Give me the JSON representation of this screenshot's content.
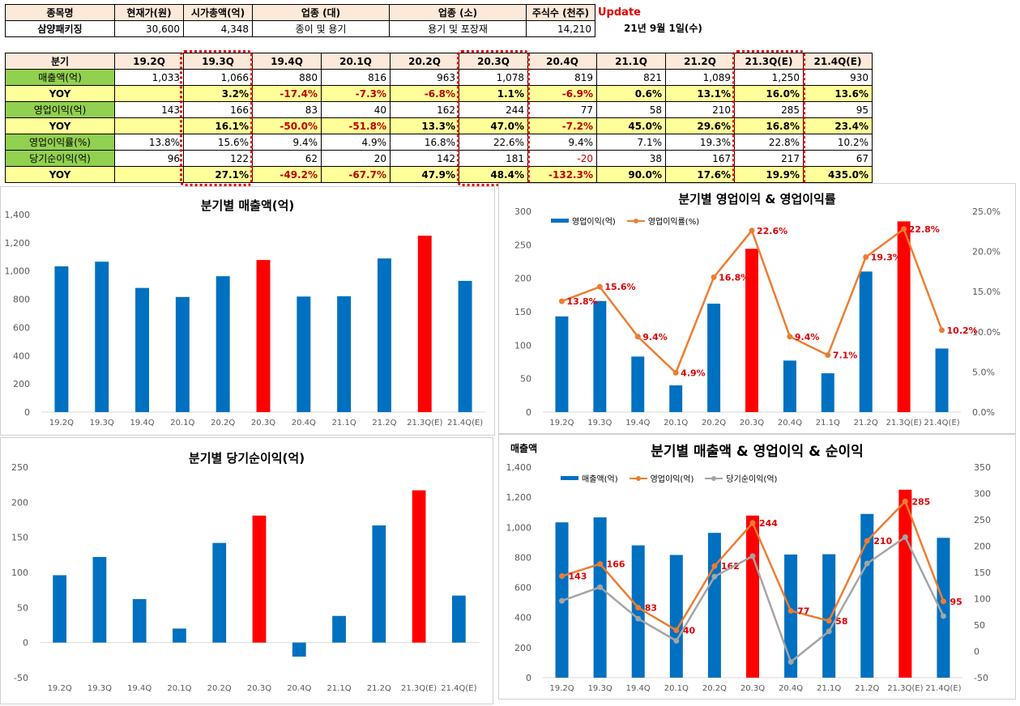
{
  "info_table": {
    "headers": [
      "종목명",
      "현재가(원)",
      "시가총액(억)",
      "업종 (대)",
      "업종 (소)",
      "주식수 (천주)"
    ],
    "values": [
      "삼양패키징",
      "30,600",
      "4,348",
      "종이 및 용기",
      "용기 및 포장재",
      "14,210"
    ],
    "update_label": "Update",
    "date": "21년 9월 1일(수)"
  },
  "quarter_table": {
    "corner": "분기",
    "quarters": [
      "19.2Q",
      "19.3Q",
      "19.4Q",
      "20.1Q",
      "20.2Q",
      "20.3Q",
      "20.4Q",
      "21.1Q",
      "21.2Q",
      "21.3Q(E)",
      "21.4Q(E)"
    ],
    "rows": [
      {
        "label": "매출액(억)",
        "type": "val",
        "cells": [
          "1,033",
          "1,066",
          "880",
          "816",
          "963",
          "1,078",
          "819",
          "821",
          "1,089",
          "1,250",
          "930"
        ]
      },
      {
        "label": "YOY",
        "type": "yoy",
        "cells": [
          "",
          "3.2%",
          "-17.4%",
          "-7.3%",
          "-6.8%",
          "1.1%",
          "-6.9%",
          "0.6%",
          "13.1%",
          "16.0%",
          "13.6%"
        ]
      },
      {
        "label": "영업이익(억)",
        "type": "val",
        "cells": [
          "143",
          "166",
          "83",
          "40",
          "162",
          "244",
          "77",
          "58",
          "210",
          "285",
          "95"
        ]
      },
      {
        "label": "YOY",
        "type": "yoy",
        "cells": [
          "",
          "16.1%",
          "-50.0%",
          "-51.8%",
          "13.3%",
          "47.0%",
          "-7.2%",
          "45.0%",
          "29.6%",
          "16.8%",
          "23.4%"
        ]
      },
      {
        "label": "영업이익률(%)",
        "type": "val",
        "cells": [
          "13.8%",
          "15.6%",
          "9.4%",
          "4.9%",
          "16.8%",
          "22.6%",
          "9.4%",
          "7.1%",
          "19.3%",
          "22.8%",
          "10.2%"
        ]
      },
      {
        "label": "당기순이익(억)",
        "type": "val",
        "cells": [
          "96",
          "122",
          "62",
          "20",
          "142",
          "181",
          "-20",
          "38",
          "167",
          "217",
          "67"
        ]
      },
      {
        "label": "YOY",
        "type": "yoy",
        "cells": [
          "",
          "27.1%",
          "-49.2%",
          "-67.7%",
          "47.9%",
          "48.4%",
          "-132.3%",
          "90.0%",
          "17.6%",
          "19.9%",
          "435.0%"
        ]
      }
    ]
  },
  "colors": {
    "blue": "#0070c0",
    "red": "#ff0000",
    "orange": "#ed7d31",
    "gray": "#a5a5a5",
    "label_red": "#e00000",
    "highlight": "#e00000"
  },
  "chart_data": [
    {
      "id": "revenue",
      "type": "bar",
      "title": "분기별 매출액(억)",
      "categories": [
        "19.2Q",
        "19.3Q",
        "19.4Q",
        "20.1Q",
        "20.2Q",
        "20.3Q",
        "20.4Q",
        "21.1Q",
        "21.2Q",
        "21.3Q(E)",
        "21.4Q(E)"
      ],
      "values": [
        1033,
        1066,
        880,
        816,
        963,
        1078,
        819,
        821,
        1089,
        1250,
        930
      ],
      "highlight_indices": [
        5,
        9
      ],
      "ylim": [
        0,
        1400
      ],
      "yticks": [
        0,
        200,
        400,
        600,
        800,
        1000,
        1200,
        1400
      ],
      "ytick_labels": [
        "0",
        "200",
        "400",
        "600",
        "800",
        "1,000",
        "1,200",
        "1,400"
      ]
    },
    {
      "id": "op",
      "type": "bar+line",
      "title": "분기별 영업이익 & 영업이익률",
      "categories": [
        "19.2Q",
        "19.3Q",
        "19.4Q",
        "20.1Q",
        "20.2Q",
        "20.3Q",
        "20.4Q",
        "21.1Q",
        "21.2Q",
        "21.3Q(E)",
        "21.4Q(E)"
      ],
      "series": [
        {
          "name": "영업이익(억)",
          "kind": "bar",
          "axis": "left",
          "values": [
            143,
            166,
            83,
            40,
            162,
            244,
            77,
            58,
            210,
            285,
            95
          ]
        },
        {
          "name": "영업이익률(%)",
          "kind": "line",
          "axis": "right",
          "values": [
            13.8,
            15.6,
            9.4,
            4.9,
            16.8,
            22.6,
            9.4,
            7.1,
            19.3,
            22.8,
            10.2
          ],
          "labels": [
            "13.8%",
            "15.6%",
            "9.4%",
            "4.9%",
            "16.8%",
            "22.6%",
            "9.4%",
            "7.1%",
            "19.3%",
            "22.8%",
            "10.2%"
          ]
        }
      ],
      "highlight_indices": [
        5,
        9
      ],
      "ylim": [
        0,
        300
      ],
      "yticks": [
        0,
        50,
        100,
        150,
        200,
        250,
        300
      ],
      "ytick_labels": [
        "0",
        "50",
        "100",
        "150",
        "200",
        "250",
        "300"
      ],
      "y2lim": [
        0,
        25
      ],
      "y2ticks": [
        0,
        5,
        10,
        15,
        20,
        25
      ],
      "y2tick_labels": [
        "0.0%",
        "5.0%",
        "10.0%",
        "15.0%",
        "20.0%",
        "25.0%"
      ]
    },
    {
      "id": "net",
      "type": "bar",
      "title": "분기별 당기순이익(억)",
      "categories": [
        "19.2Q",
        "19.3Q",
        "19.4Q",
        "20.1Q",
        "20.2Q",
        "20.3Q",
        "20.4Q",
        "21.1Q",
        "21.2Q",
        "21.3Q(E)",
        "21.4Q(E)"
      ],
      "values": [
        96,
        122,
        62,
        20,
        142,
        181,
        -20,
        38,
        167,
        217,
        67
      ],
      "highlight_indices": [
        5,
        9
      ],
      "ylim": [
        -50,
        250
      ],
      "yticks": [
        -50,
        0,
        50,
        100,
        150,
        200,
        250
      ],
      "ytick_labels": [
        "-50",
        "0",
        "50",
        "100",
        "150",
        "200",
        "250"
      ]
    },
    {
      "id": "combo",
      "type": "bar+line",
      "title": "분기별 매출액 & 영업이익 & 순이익",
      "axis_title": "매출액",
      "categories": [
        "19.2Q",
        "19.3Q",
        "19.4Q",
        "20.1Q",
        "20.2Q",
        "20.3Q",
        "20.4Q",
        "21.1Q",
        "21.2Q",
        "21.3Q(E)",
        "21.4Q(E)"
      ],
      "series": [
        {
          "name": "매출액(억)",
          "kind": "bar",
          "axis": "left",
          "values": [
            1033,
            1066,
            880,
            816,
            963,
            1078,
            819,
            821,
            1089,
            1250,
            930
          ]
        },
        {
          "name": "영업이익(억)",
          "kind": "line",
          "axis": "right",
          "values": [
            143,
            166,
            83,
            40,
            162,
            244,
            77,
            58,
            210,
            285,
            95
          ],
          "labels": [
            "143",
            "166",
            "83",
            "40",
            "162",
            "244",
            "77",
            "58",
            "210",
            "285",
            "95"
          ]
        },
        {
          "name": "당기순이익(억)",
          "kind": "line",
          "axis": "right",
          "values": [
            96,
            122,
            62,
            20,
            142,
            181,
            -20,
            38,
            167,
            217,
            67
          ]
        }
      ],
      "highlight_indices": [
        5,
        9
      ],
      "ylim": [
        0,
        1400
      ],
      "yticks": [
        0,
        200,
        400,
        600,
        800,
        1000,
        1200,
        1400
      ],
      "ytick_labels": [
        "0",
        "200",
        "400",
        "600",
        "800",
        "1,000",
        "1,200",
        "1,400"
      ],
      "y2lim": [
        -50,
        350
      ],
      "y2ticks": [
        -50,
        0,
        50,
        100,
        150,
        200,
        250,
        300,
        350
      ],
      "y2tick_labels": [
        "-50",
        "0",
        "50",
        "100",
        "150",
        "200",
        "250",
        "300",
        "350"
      ]
    }
  ]
}
